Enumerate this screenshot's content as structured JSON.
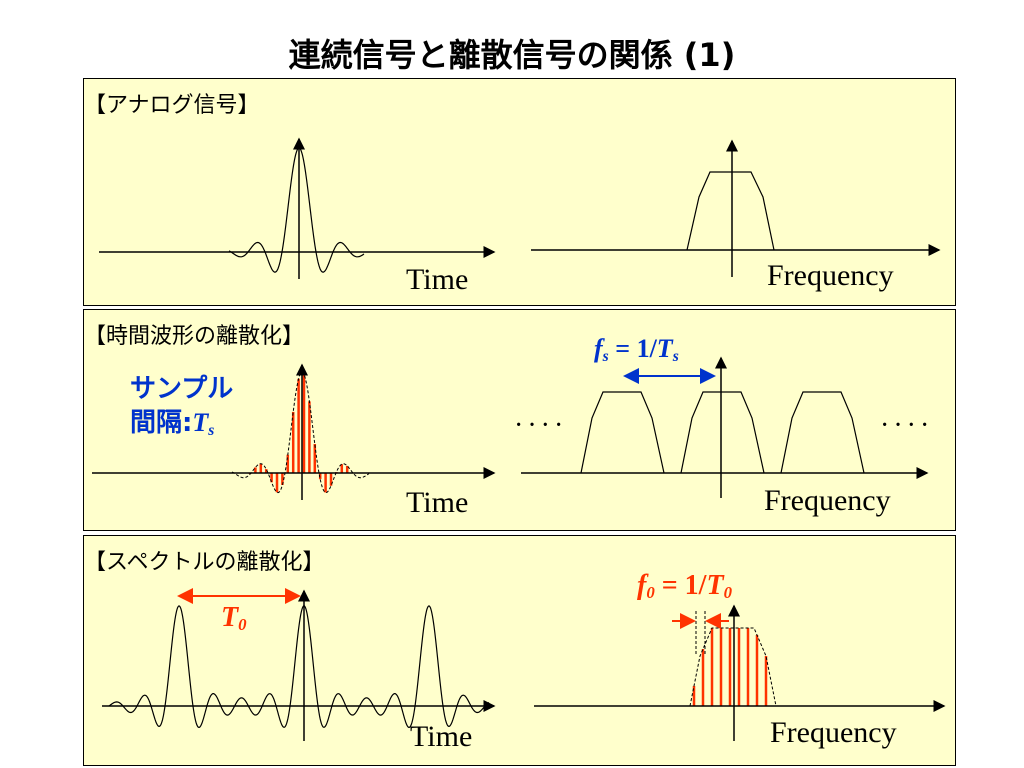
{
  "title": "連続信号と離散信号の関係 (1)",
  "panels": [
    {
      "heading": "【アナログ信号】",
      "time_label": "Time",
      "freq_label": "Frequency"
    },
    {
      "heading": "【時間波形の離散化】",
      "time_label": "Time",
      "freq_label": "Frequency",
      "sample_label_line1": "サンプル",
      "sample_label_line2_prefix": "間隔:",
      "ts_var": "T",
      "ts_sub": "s",
      "fs_var": "f",
      "fs_sub": "s",
      "fs_eq": " = 1/",
      "fs_rhs_var": "T",
      "fs_rhs_sub": "s",
      "dots_left": "····",
      "dots_right": "····"
    },
    {
      "heading": "【スペクトルの離散化】",
      "time_label": "Time",
      "freq_label": "Frequency",
      "t0_var": "T",
      "t0_sub": "0",
      "f0_var": "f",
      "f0_sub": "0",
      "f0_eq": " = 1/",
      "f0_rhs_var": "T",
      "f0_rhs_sub": "0"
    }
  ],
  "colors": {
    "panel_bg": "#ffffcc",
    "blue": "#0033cc",
    "red": "#ff3300",
    "line": "#000000"
  }
}
